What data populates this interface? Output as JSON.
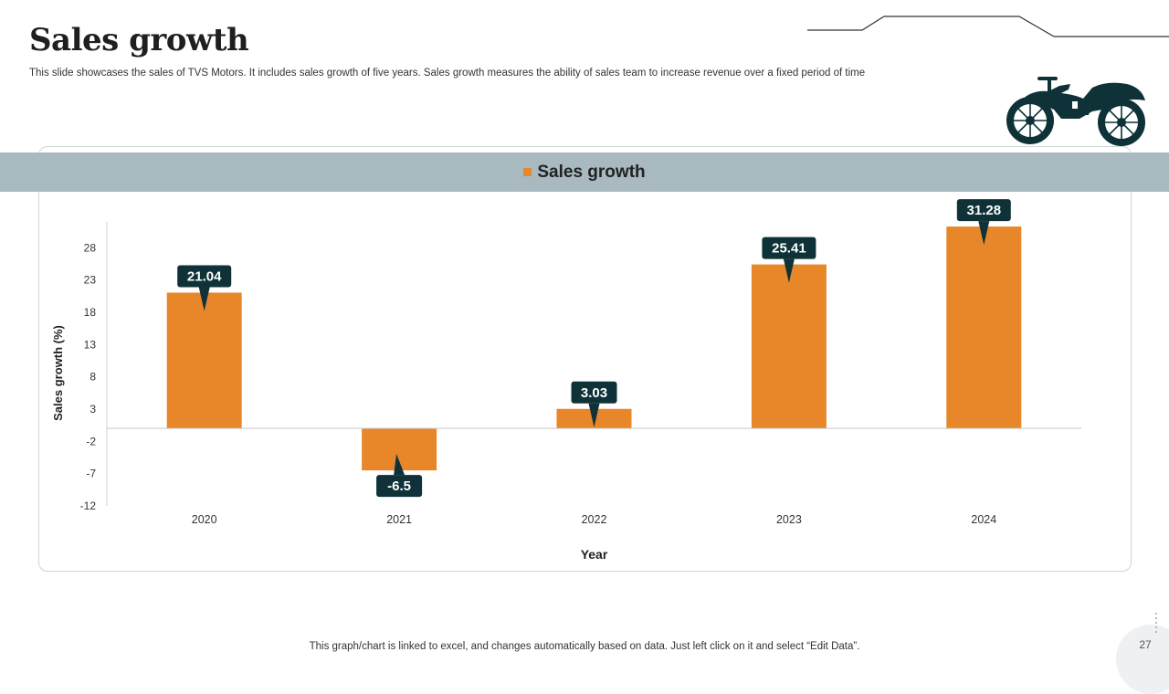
{
  "slide": {
    "title": "Sales growth",
    "subtitle": "This slide showcases the sales of TVS Motors. It includes sales growth of five years. Sales growth measures the ability of  sales team to increase revenue over a fixed period of time",
    "footnote": "This graph/chart is linked to excel, and changes automatically based on data. Just left click on it and select “Edit Data”.",
    "page_number": "27",
    "icon": "motorcycle-icon"
  },
  "colors": {
    "bar": "#e8862a",
    "label_bg": "#0e3237",
    "legend_band": "#a9b9c0",
    "accent_dark": "#0e3237"
  },
  "chart_data": {
    "type": "bar",
    "title": "",
    "legend": [
      "Sales growth"
    ],
    "legend_position": "top",
    "categories": [
      "2020",
      "2021",
      "2022",
      "2023",
      "2024"
    ],
    "series": [
      {
        "name": "Sales growth",
        "values": [
          21.04,
          -6.5,
          3.03,
          25.41,
          31.28
        ]
      }
    ],
    "data_labels": [
      "21.04",
      "-6.5",
      "3.03",
      "25.41",
      "31.28"
    ],
    "xlabel": "Year",
    "ylabel": "Sales growth (%)",
    "yticks": [
      -12,
      -7,
      -2,
      3,
      8,
      13,
      18,
      23,
      28
    ],
    "ylim": [
      -12,
      32
    ],
    "grid": false
  }
}
